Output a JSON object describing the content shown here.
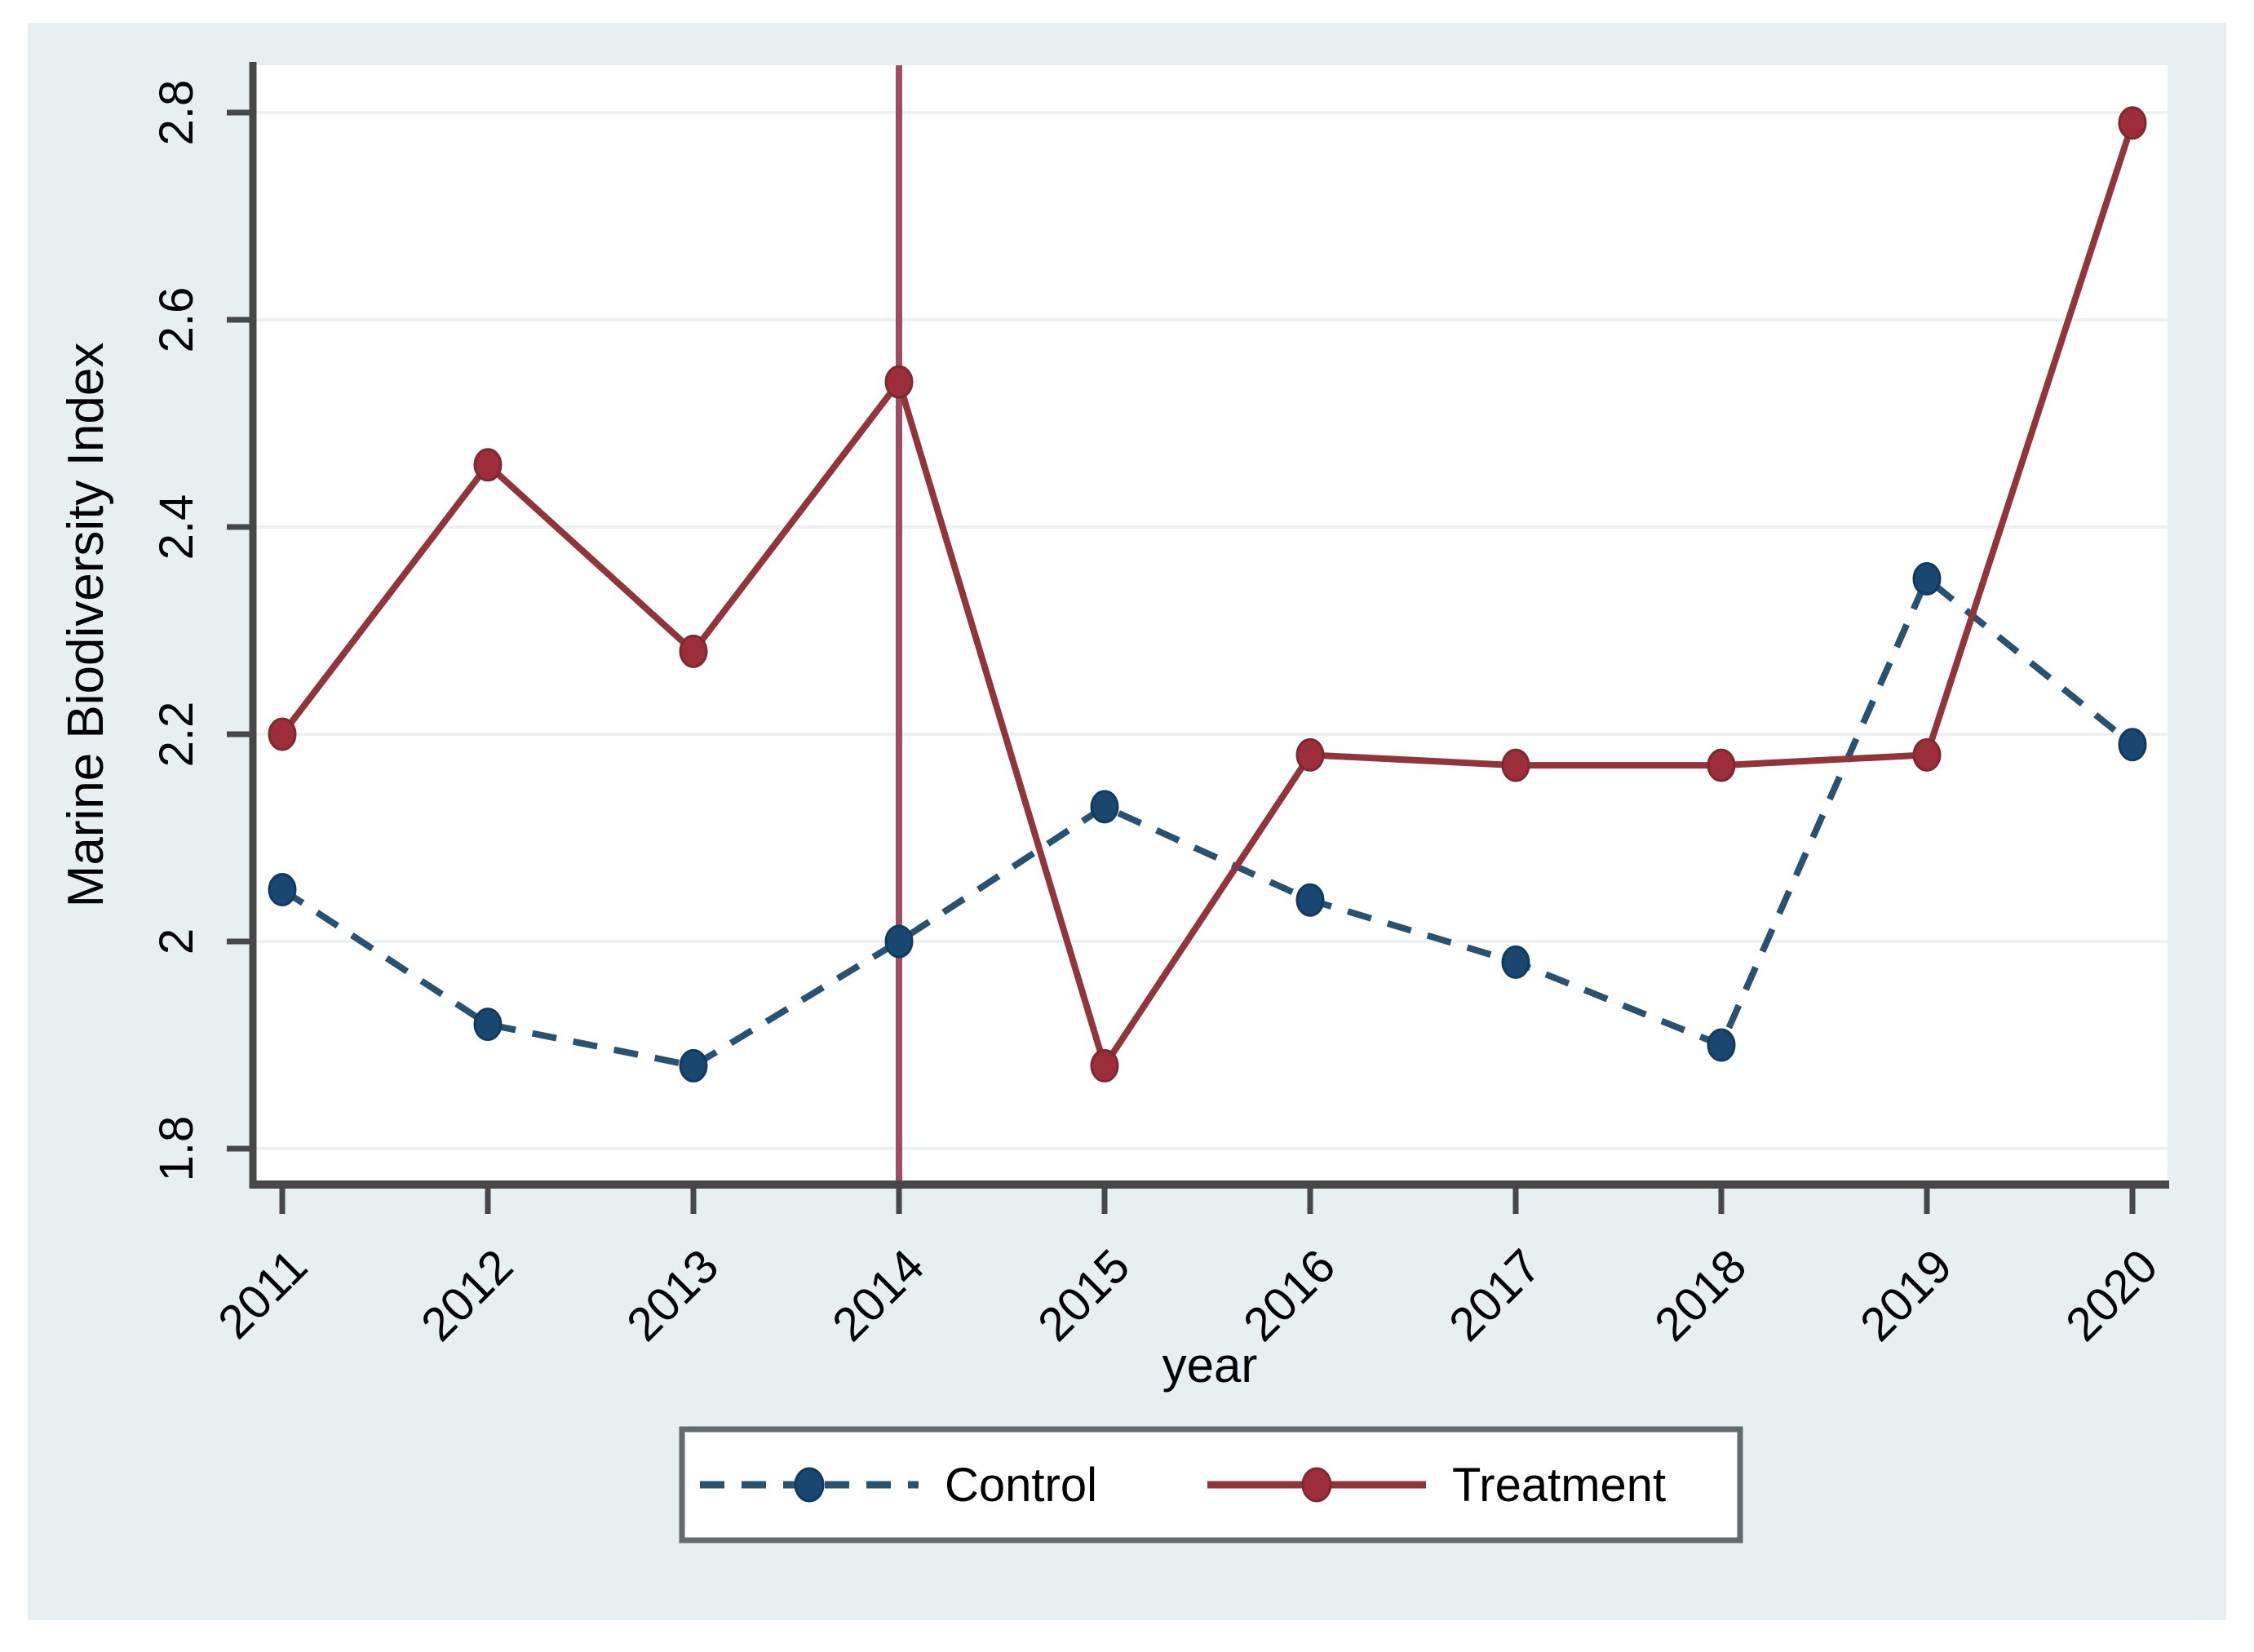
{
  "figure": {
    "page_background": "#ffffff",
    "card_background": "#e8eff1",
    "plot_background": "#ffffff"
  },
  "chart_data": {
    "type": "line",
    "title": "",
    "xlabel": "year",
    "ylabel": "Marine Biodiversity Index",
    "x": [
      2011,
      2012,
      2013,
      2014,
      2015,
      2016,
      2017,
      2018,
      2019,
      2020
    ],
    "x_tick_labels": [
      "2011",
      "2012",
      "2013",
      "2014",
      "2015",
      "2016",
      "2017",
      "2018",
      "2019",
      "2020"
    ],
    "y_ticks": [
      1.8,
      2,
      2.2,
      2.4,
      2.6,
      2.8
    ],
    "y_tick_labels": [
      "1.8",
      "2",
      "2.2",
      "2.4",
      "2.6",
      "2.8"
    ],
    "ylim": [
      1.76,
      2.84
    ],
    "grid": "horizontal",
    "gridline_color": "#eef1f2",
    "axis_color": "#474747",
    "tick_color": "#474747",
    "legend_position": "bottom-center",
    "legend_border_color": "#646b6d",
    "legend_background": "#ffffff",
    "series": [
      {
        "name": "Control",
        "style": "dashed",
        "color": "#2b5170",
        "marker_color": "#1a476f",
        "marker_edge": "#123a5e",
        "values": [
          2.05,
          1.92,
          1.88,
          2.0,
          2.13,
          2.04,
          1.98,
          1.9,
          2.35,
          2.19
        ]
      },
      {
        "name": "Treatment",
        "style": "solid",
        "color": "#90353b",
        "marker_color": "#9b2e38",
        "marker_edge": "#7c2931",
        "values": [
          2.2,
          2.46,
          2.28,
          2.54,
          1.88,
          2.18,
          2.17,
          2.17,
          2.18,
          2.79
        ]
      }
    ],
    "vline": {
      "x": 2014,
      "color": "#9c4e64"
    }
  }
}
